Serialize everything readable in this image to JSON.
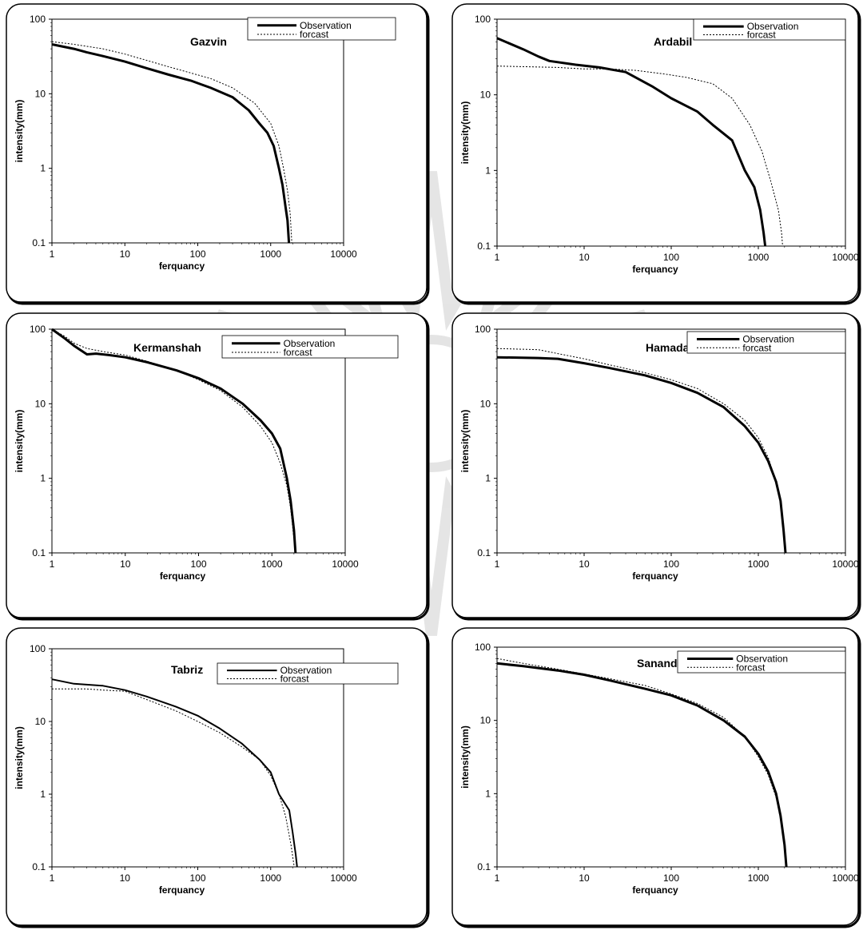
{
  "figure": {
    "panels": [
      {
        "id": "gazvin",
        "station": "Gazvin",
        "legend": {
          "obs": "Observation",
          "fc": "forcast"
        },
        "xlabel": "ferquancy",
        "ylabel": "intensity(mm)"
      },
      {
        "id": "ardabil",
        "station": "Ardabil",
        "legend": {
          "obs": "Observation",
          "fc": "forcast"
        },
        "xlabel": "ferquancy",
        "ylabel": "intensity(mm)"
      },
      {
        "id": "kermanshah",
        "station": "Kermanshah",
        "legend": {
          "obs": "Observation",
          "fc": "forcast"
        },
        "xlabel": "ferquancy",
        "ylabel": "intensity(mm)"
      },
      {
        "id": "hamadan",
        "station": "Hamadan",
        "legend": {
          "obs": "Observation",
          "fc": "forcast"
        },
        "xlabel": "ferquancy",
        "ylabel": "intensity(mm)"
      },
      {
        "id": "tabriz",
        "station": "Tabriz",
        "legend": {
          "obs": "Observation",
          "fc": "forcast"
        },
        "xlabel": "ferquancy",
        "ylabel": "intensity(mm)"
      },
      {
        "id": "sanandaj",
        "station": "Sanandaj",
        "legend": {
          "obs": "Observation",
          "fc": "forcast"
        },
        "xlabel": "ferquancy",
        "ylabel": "intensity(mm)"
      }
    ]
  },
  "chart_data": [
    {
      "type": "line",
      "title": "Gazvin",
      "xlabel": "ferquancy",
      "ylabel": "intensity(mm)",
      "x_scale": "log",
      "y_scale": "log",
      "xlim": [
        1,
        10000
      ],
      "ylim": [
        0.1,
        100
      ],
      "xticks": [
        "1",
        "10",
        "100",
        "1000",
        "10000"
      ],
      "yticks": [
        "0.1",
        "1",
        "10",
        "100"
      ],
      "legend_position": "top-right",
      "series": [
        {
          "name": "Observation",
          "style": "thick-solid",
          "points": [
            [
              1,
              46
            ],
            [
              2,
              40
            ],
            [
              3,
              36
            ],
            [
              5,
              32
            ],
            [
              10,
              27
            ],
            [
              20,
              22
            ],
            [
              40,
              18
            ],
            [
              80,
              15
            ],
            [
              150,
              12
            ],
            [
              300,
              9
            ],
            [
              500,
              6
            ],
            [
              700,
              4
            ],
            [
              900,
              3
            ],
            [
              1100,
              2
            ],
            [
              1300,
              1
            ],
            [
              1450,
              0.6
            ],
            [
              1600,
              0.3
            ],
            [
              1700,
              0.2
            ],
            [
              1780,
              0.1
            ]
          ]
        },
        {
          "name": "forcast",
          "style": "dotted",
          "points": [
            [
              1,
              50
            ],
            [
              2,
              46
            ],
            [
              5,
              40
            ],
            [
              10,
              34
            ],
            [
              20,
              28
            ],
            [
              40,
              23
            ],
            [
              80,
              19
            ],
            [
              150,
              16
            ],
            [
              300,
              12
            ],
            [
              600,
              7.5
            ],
            [
              1000,
              4
            ],
            [
              1300,
              2
            ],
            [
              1500,
              1
            ],
            [
              1700,
              0.5
            ],
            [
              1850,
              0.25
            ],
            [
              1950,
              0.1
            ]
          ]
        }
      ]
    },
    {
      "type": "line",
      "title": "Ardabil",
      "xlabel": "ferquancy",
      "ylabel": "intensity(mm)",
      "x_scale": "log",
      "y_scale": "log",
      "xlim": [
        1,
        10000
      ],
      "ylim": [
        0.1,
        100
      ],
      "xticks": [
        "1",
        "10",
        "100",
        "1000",
        "10000"
      ],
      "yticks": [
        "0.1",
        "1",
        "10",
        "100"
      ],
      "legend_position": "top-right",
      "series": [
        {
          "name": "Observation",
          "style": "thick-solid",
          "points": [
            [
              1,
              56
            ],
            [
              2,
              40
            ],
            [
              3,
              32
            ],
            [
              4,
              28
            ],
            [
              8,
              25
            ],
            [
              15,
              23
            ],
            [
              30,
              20
            ],
            [
              60,
              13
            ],
            [
              100,
              9
            ],
            [
              200,
              6
            ],
            [
              300,
              4
            ],
            [
              500,
              2.5
            ],
            [
              700,
              1
            ],
            [
              900,
              0.6
            ],
            [
              1050,
              0.3
            ],
            [
              1150,
              0.15
            ],
            [
              1200,
              0.1
            ]
          ]
        },
        {
          "name": "forcast",
          "style": "dotted",
          "points": [
            [
              1,
              24
            ],
            [
              5,
              23
            ],
            [
              10,
              22
            ],
            [
              20,
              22
            ],
            [
              40,
              21
            ],
            [
              80,
              19
            ],
            [
              150,
              17
            ],
            [
              300,
              14
            ],
            [
              500,
              9
            ],
            [
              800,
              4
            ],
            [
              1100,
              1.8
            ],
            [
              1400,
              0.7
            ],
            [
              1700,
              0.3
            ],
            [
              1850,
              0.15
            ],
            [
              1900,
              0.1
            ]
          ]
        }
      ]
    },
    {
      "type": "line",
      "title": "Kermanshah",
      "xlabel": "ferquancy",
      "ylabel": "intensity(mm)",
      "x_scale": "log",
      "y_scale": "log",
      "xlim": [
        1,
        10000
      ],
      "ylim": [
        0.1,
        100
      ],
      "xticks": [
        "1",
        "10",
        "100",
        "1000",
        "10000"
      ],
      "yticks": [
        "0.1",
        "1",
        "10",
        "100"
      ],
      "legend_position": "top-right",
      "series": [
        {
          "name": "Observation",
          "style": "thick-solid",
          "points": [
            [
              1,
              100
            ],
            [
              1.5,
              75
            ],
            [
              2,
              60
            ],
            [
              3,
              46
            ],
            [
              4,
              47
            ],
            [
              6,
              45
            ],
            [
              10,
              42
            ],
            [
              20,
              36
            ],
            [
              50,
              28
            ],
            [
              100,
              22
            ],
            [
              200,
              16
            ],
            [
              400,
              10
            ],
            [
              700,
              6
            ],
            [
              1000,
              4
            ],
            [
              1300,
              2.5
            ],
            [
              1600,
              1
            ],
            [
              1800,
              0.5
            ],
            [
              2000,
              0.2
            ],
            [
              2100,
              0.1
            ]
          ]
        },
        {
          "name": "forcast",
          "style": "dotted",
          "points": [
            [
              1,
              100
            ],
            [
              1.5,
              80
            ],
            [
              2,
              65
            ],
            [
              3,
              55
            ],
            [
              5,
              50
            ],
            [
              10,
              45
            ],
            [
              20,
              37
            ],
            [
              50,
              28
            ],
            [
              100,
              21
            ],
            [
              200,
              15
            ],
            [
              400,
              9
            ],
            [
              700,
              5
            ],
            [
              1000,
              3
            ],
            [
              1300,
              1.6
            ],
            [
              1600,
              0.8
            ],
            [
              1800,
              0.4
            ],
            [
              2000,
              0.15
            ],
            [
              2100,
              0.1
            ]
          ]
        }
      ]
    },
    {
      "type": "line",
      "title": "Hamadan",
      "xlabel": "ferquancy",
      "ylabel": "intensity(mm)",
      "x_scale": "log",
      "y_scale": "log",
      "xlim": [
        1,
        10000
      ],
      "ylim": [
        0.1,
        100
      ],
      "xticks": [
        "1",
        "10",
        "100",
        "1000",
        "10000"
      ],
      "yticks": [
        "0.1",
        "1",
        "10",
        "100"
      ],
      "legend_position": "top-right",
      "series": [
        {
          "name": "Observation",
          "style": "thick-solid",
          "points": [
            [
              1,
              42
            ],
            [
              3,
              41
            ],
            [
              5,
              40
            ],
            [
              10,
              35
            ],
            [
              20,
              30
            ],
            [
              50,
              24
            ],
            [
              100,
              19
            ],
            [
              200,
              14
            ],
            [
              400,
              9
            ],
            [
              700,
              5
            ],
            [
              1000,
              3
            ],
            [
              1300,
              1.7
            ],
            [
              1600,
              0.9
            ],
            [
              1800,
              0.5
            ],
            [
              1950,
              0.2
            ],
            [
              2050,
              0.1
            ]
          ]
        },
        {
          "name": "forcast",
          "style": "dotted",
          "points": [
            [
              1,
              55
            ],
            [
              3,
              53
            ],
            [
              5,
              47
            ],
            [
              10,
              40
            ],
            [
              20,
              33
            ],
            [
              50,
              26
            ],
            [
              100,
              21
            ],
            [
              200,
              16
            ],
            [
              400,
              10
            ],
            [
              700,
              6
            ],
            [
              1000,
              3.5
            ],
            [
              1300,
              1.9
            ],
            [
              1600,
              0.9
            ],
            [
              1800,
              0.45
            ],
            [
              1950,
              0.2
            ],
            [
              2050,
              0.1
            ]
          ]
        }
      ]
    },
    {
      "type": "line",
      "title": "Tabriz",
      "xlabel": "ferquancy",
      "ylabel": "intensity(mm)",
      "x_scale": "log",
      "y_scale": "log",
      "xlim": [
        1,
        10000
      ],
      "ylim": [
        0.1,
        100
      ],
      "xticks": [
        "1",
        "10",
        "100",
        "1000",
        "10000"
      ],
      "yticks": [
        "0.1",
        "1",
        "10",
        "100"
      ],
      "legend_position": "top-right",
      "series": [
        {
          "name": "Observation",
          "style": "solid",
          "points": [
            [
              1,
              38
            ],
            [
              2,
              33
            ],
            [
              5,
              31
            ],
            [
              10,
              27
            ],
            [
              20,
              22
            ],
            [
              50,
              16
            ],
            [
              100,
              12
            ],
            [
              200,
              8
            ],
            [
              400,
              5
            ],
            [
              700,
              3
            ],
            [
              1000,
              2
            ],
            [
              1300,
              1
            ],
            [
              1800,
              0.6
            ],
            [
              2000,
              0.3
            ],
            [
              2200,
              0.15
            ],
            [
              2300,
              0.1
            ]
          ]
        },
        {
          "name": "forcast",
          "style": "dotted",
          "points": [
            [
              1,
              28
            ],
            [
              3,
              28
            ],
            [
              5,
              27
            ],
            [
              10,
              26
            ],
            [
              20,
              20
            ],
            [
              50,
              14
            ],
            [
              100,
              10
            ],
            [
              200,
              7
            ],
            [
              400,
              4.5
            ],
            [
              700,
              3
            ],
            [
              1000,
              1.8
            ],
            [
              1300,
              1
            ],
            [
              1600,
              0.5
            ],
            [
              1900,
              0.2
            ],
            [
              2100,
              0.1
            ]
          ]
        }
      ]
    },
    {
      "type": "line",
      "title": "Sanandaj",
      "xlabel": "ferquancy",
      "ylabel": "intensity(mm)",
      "x_scale": "log",
      "y_scale": "log",
      "xlim": [
        1,
        10000
      ],
      "ylim": [
        0.1,
        100
      ],
      "xticks": [
        "1",
        "10",
        "100",
        "1000",
        "10000"
      ],
      "yticks": [
        "0.1",
        "1",
        "10",
        "100"
      ],
      "legend_position": "top-right",
      "series": [
        {
          "name": "Observation",
          "style": "thick-solid",
          "points": [
            [
              1,
              60
            ],
            [
              2,
              55
            ],
            [
              5,
              48
            ],
            [
              10,
              42
            ],
            [
              20,
              35
            ],
            [
              50,
              27
            ],
            [
              100,
              22
            ],
            [
              200,
              16
            ],
            [
              400,
              10
            ],
            [
              700,
              6
            ],
            [
              1000,
              3.5
            ],
            [
              1300,
              2
            ],
            [
              1600,
              1
            ],
            [
              1800,
              0.5
            ],
            [
              2000,
              0.2
            ],
            [
              2100,
              0.1
            ]
          ]
        },
        {
          "name": "forcast",
          "style": "dotted",
          "points": [
            [
              1,
              70
            ],
            [
              2,
              60
            ],
            [
              5,
              50
            ],
            [
              10,
              43
            ],
            [
              20,
              37
            ],
            [
              50,
              30
            ],
            [
              100,
              23
            ],
            [
              200,
              17
            ],
            [
              400,
              11
            ],
            [
              700,
              6
            ],
            [
              1000,
              3.2
            ],
            [
              1300,
              1.8
            ],
            [
              1600,
              0.9
            ],
            [
              1800,
              0.45
            ],
            [
              2000,
              0.2
            ],
            [
              2100,
              0.1
            ]
          ]
        }
      ]
    }
  ]
}
